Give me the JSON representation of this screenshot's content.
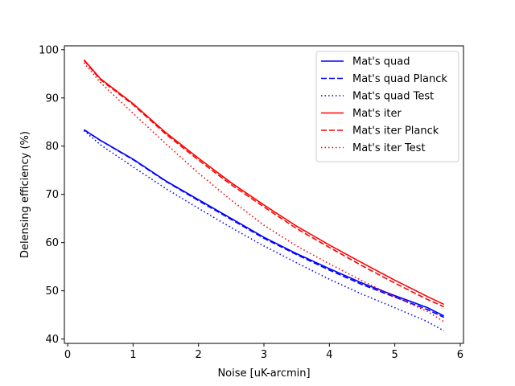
{
  "chart_data": {
    "type": "line",
    "title": "",
    "xlabel": "Noise [uK-arcmin]",
    "ylabel": "Delensing efficiency (%)",
    "xlim": [
      -0.05,
      6.05
    ],
    "ylim": [
      39.1,
      100.8
    ],
    "xticks": [
      0,
      1,
      2,
      3,
      4,
      5,
      6
    ],
    "yticks": [
      40,
      50,
      60,
      70,
      80,
      90,
      100
    ],
    "grid": false,
    "legend_position": "top-right",
    "x": [
      0.25,
      0.5,
      1.0,
      1.5,
      2.0,
      2.5,
      3.0,
      3.5,
      4.0,
      4.5,
      5.0,
      5.5,
      5.75
    ],
    "series": [
      {
        "name": "Mat's quad",
        "color": "#0000ff",
        "dash": "solid",
        "values": [
          83.4,
          81.2,
          77.3,
          72.8,
          68.9,
          65.0,
          61.1,
          57.7,
          54.6,
          51.6,
          49.0,
          46.5,
          44.8
        ]
      },
      {
        "name": "Mat's quad Planck",
        "color": "#0000ff",
        "dash": "dashed",
        "values": [
          83.4,
          81.2,
          77.2,
          72.7,
          68.7,
          64.8,
          60.9,
          57.5,
          54.3,
          51.3,
          48.7,
          46.1,
          44.5
        ]
      },
      {
        "name": "Mat's quad Test",
        "color": "#0000ff",
        "dash": "dotted",
        "values": [
          83.2,
          80.3,
          75.7,
          71.2,
          67.1,
          63.1,
          59.3,
          55.8,
          52.4,
          49.3,
          46.5,
          43.6,
          41.7
        ]
      },
      {
        "name": "Mat's iter",
        "color": "#ff0000",
        "dash": "solid",
        "values": [
          97.9,
          94.0,
          88.8,
          82.8,
          77.5,
          72.4,
          67.8,
          63.4,
          59.5,
          55.8,
          52.2,
          48.8,
          47.2
        ]
      },
      {
        "name": "Mat's iter Planck",
        "color": "#ff0000",
        "dash": "dashed",
        "values": [
          97.8,
          93.8,
          88.6,
          82.5,
          77.1,
          72.0,
          67.4,
          62.9,
          59.0,
          55.2,
          51.6,
          48.2,
          46.7
        ]
      },
      {
        "name": "Mat's iter Test",
        "color": "#ff0000",
        "dash": "dotted",
        "values": [
          97.3,
          93.2,
          86.8,
          80.5,
          74.4,
          68.8,
          63.6,
          59.3,
          55.6,
          52.1,
          48.8,
          45.7,
          43.6
        ]
      }
    ]
  }
}
